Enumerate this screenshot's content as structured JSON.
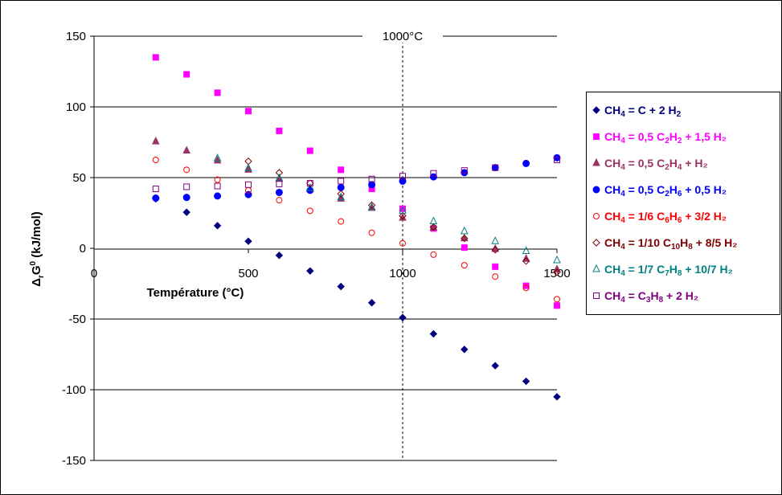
{
  "chart_data": {
    "type": "scatter",
    "title": "",
    "xlabel": "Température (°C)",
    "ylabel": "ΔrG0 (kJ/mol)",
    "xlim": [
      0,
      1500
    ],
    "ylim": [
      -150,
      150
    ],
    "xticks": [
      0,
      500,
      1000,
      1500
    ],
    "yticks": [
      150,
      100,
      50,
      0,
      -50,
      -100,
      -150
    ],
    "xtick_labels": [
      "0",
      "500",
      "1000",
      "1500"
    ],
    "ytick_labels": [
      "150",
      "100",
      "50",
      "0",
      "-50",
      "-100",
      "-150"
    ],
    "grid": "horizontal",
    "legend_position": "right",
    "annotation": {
      "text": "1000°C",
      "x": 1000
    },
    "series": [
      {
        "name": "CH4 = C + 2 H2",
        "color": "#000080",
        "marker": "diamond-filled",
        "x": [
          200,
          300,
          400,
          500,
          600,
          700,
          800,
          900,
          1000,
          1100,
          1200,
          1300,
          1400,
          1500
        ],
        "y": [
          35,
          25.5,
          16,
          5,
          -5,
          -16,
          -27,
          -38.5,
          -49,
          -60.5,
          -71.5,
          -83,
          -94,
          -105
        ]
      },
      {
        "name": "CH4 = 0,5 C2H2 + 1,5 H2",
        "color": "#ff00ff",
        "marker": "square-filled",
        "x": [
          200,
          300,
          400,
          500,
          600,
          700,
          800,
          900,
          1000,
          1100,
          1200,
          1300,
          1400,
          1500
        ],
        "y": [
          135,
          123,
          110,
          97,
          83,
          69,
          55.5,
          42,
          28,
          14,
          0.5,
          -13,
          -26.5,
          -40.5
        ]
      },
      {
        "name": "CH4 = 0,5 C2H4 + H2",
        "color": "#993366",
        "marker": "triangle-filled",
        "x": [
          200,
          300,
          400,
          500,
          600,
          700,
          800,
          900,
          1000,
          1100,
          1200,
          1300,
          1400,
          1500
        ],
        "y": [
          75.5,
          69,
          62,
          55.5,
          49,
          42,
          35,
          28.5,
          21.5,
          14.5,
          7,
          -0.5,
          -7.5,
          -15
        ]
      },
      {
        "name": "CH4 = 0,5 C2H6 + 0,5 H2",
        "color": "#0000ff",
        "marker": "circle-filled",
        "x": [
          200,
          300,
          400,
          500,
          600,
          700,
          800,
          900,
          1000,
          1100,
          1200,
          1300,
          1400,
          1500
        ],
        "y": [
          35.5,
          36,
          37,
          38,
          39.5,
          41,
          43,
          45,
          47.5,
          50.5,
          53.5,
          57,
          60,
          64
        ]
      },
      {
        "name": "CH4 = 1/6 C6H6 + 3/2 H2",
        "color": "#ff0000",
        "marker": "circle-open",
        "x": [
          200,
          300,
          400,
          500,
          600,
          700,
          800,
          900,
          1000,
          1100,
          1200,
          1300,
          1400,
          1500
        ],
        "y": [
          62.5,
          55.5,
          48.5,
          41,
          34,
          26.5,
          19,
          11,
          3.5,
          -4.5,
          -12,
          -20,
          -28,
          -36
        ]
      },
      {
        "name": "CH4 = 1/10 C10H8 + 8/5 H2",
        "color": "#800000",
        "marker": "diamond-open",
        "x": [
          200,
          300,
          400,
          500,
          600,
          700,
          800,
          900,
          1000,
          1100,
          1200,
          1300,
          1400,
          1500
        ],
        "y": [
          null,
          null,
          null,
          61.5,
          53.5,
          46,
          38.5,
          30.5,
          23,
          15,
          7,
          -1,
          -9,
          -17
        ]
      },
      {
        "name": "CH4 = 1/7 C7H8 + 10/7 H2",
        "color": "#008080",
        "marker": "triangle-open",
        "x": [
          200,
          300,
          400,
          500,
          600,
          700,
          800,
          900,
          1000,
          1100,
          1200,
          1300,
          1400,
          1500
        ],
        "y": [
          null,
          null,
          63.5,
          56.5,
          49.5,
          42.5,
          36,
          29,
          26.5,
          19,
          12,
          5,
          -2,
          -8.5
        ]
      },
      {
        "name": "CH4 = C3H8 + 2 H2",
        "color": "#800080",
        "marker": "square-open",
        "x": [
          200,
          300,
          400,
          500,
          600,
          700,
          800,
          900,
          1000,
          1100,
          1200,
          1300,
          1400,
          1500
        ],
        "y": [
          42,
          43.5,
          44,
          45,
          45.5,
          46,
          47.5,
          49,
          51,
          53,
          55,
          57,
          null,
          62.5
        ]
      }
    ]
  },
  "legend": {
    "items": [
      {
        "pre": "CH",
        "s1": "4",
        "mid": " = C + 2 H",
        "s2": "2",
        "post": "",
        "s3": "",
        "tail": ""
      },
      {
        "pre": "CH",
        "s1": "4",
        "mid": " = 0,5 C",
        "s2": "2",
        "post": "H",
        "s3": "2",
        "tail": " + 1,5 H₂"
      },
      {
        "pre": "CH",
        "s1": "4",
        "mid": " = 0,5 C",
        "s2": "2",
        "post": "H",
        "s3": "4",
        "tail": " + H₂"
      },
      {
        "pre": "CH",
        "s1": "4",
        "mid": " = 0,5 C",
        "s2": "2",
        "post": "H",
        "s3": "6",
        "tail": " + 0,5 H₂"
      },
      {
        "pre": "CH",
        "s1": "4",
        "mid": " = 1/6 C",
        "s2": "6",
        "post": "H",
        "s3": "6",
        "tail": " + 3/2 H₂"
      },
      {
        "pre": "CH",
        "s1": "4",
        "mid": " = 1/10 C",
        "s2": "10",
        "post": "H",
        "s3": "8",
        "tail": " + 8/5 H₂"
      },
      {
        "pre": "CH",
        "s1": "4",
        "mid": " = 1/7 C",
        "s2": "7",
        "post": "H",
        "s3": "8",
        "tail": " + 10/7 H₂"
      },
      {
        "pre": "CH",
        "s1": "4",
        "mid": " = C",
        "s2": "3",
        "post": "H",
        "s3": "8",
        "tail": " + 2 H₂"
      }
    ]
  }
}
